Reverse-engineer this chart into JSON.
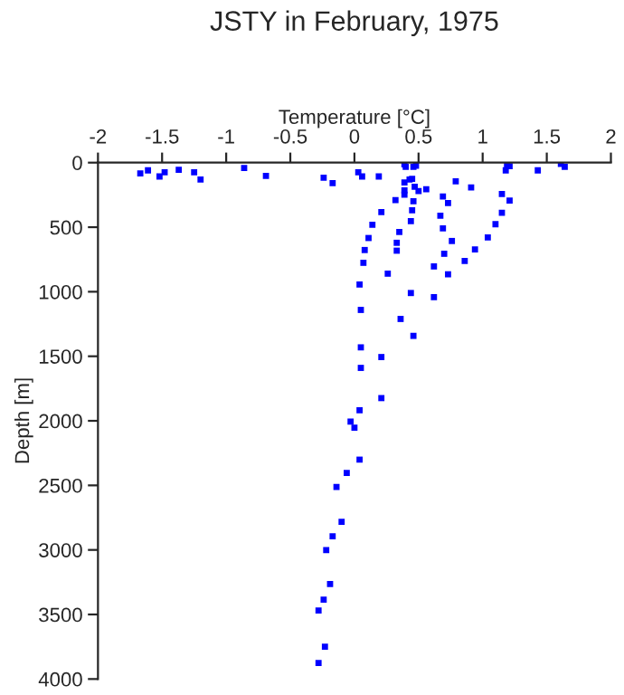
{
  "chart_data": {
    "type": "scatter",
    "title": "JSTY in February, 1975",
    "xlabel": "Temperature [°C]",
    "ylabel": "Depth [m]",
    "x": [
      -1.67,
      -1.61,
      -1.52,
      -1.48,
      -1.37,
      -1.25,
      -1.2,
      -0.86,
      -0.69,
      -0.24,
      -0.17,
      0.03,
      0.06,
      0.19,
      0.39,
      0.4,
      0.46,
      0.48,
      0.43,
      0.45,
      0.39,
      0.47,
      0.56,
      0.5,
      0.39,
      0.39,
      0.32,
      0.46,
      0.21,
      0.45,
      0.44,
      0.14,
      0.35,
      0.11,
      0.33,
      0.08,
      0.33,
      0.07,
      0.26,
      0.04,
      0.05,
      0.36,
      0.44,
      0.62,
      0.69,
      0.73,
      0.67,
      0.69,
      0.76,
      0.7,
      0.62,
      0.73,
      0.79,
      0.91,
      1.18,
      1.19,
      1.21,
      1.15,
      1.21,
      1.15,
      1.1,
      1.04,
      0.94,
      0.86,
      1.43,
      1.61,
      1.64,
      0.46,
      0.05,
      0.21,
      0.05,
      0.21,
      0.04,
      -0.03,
      0.0,
      0.04,
      -0.06,
      -0.14,
      -0.1,
      -0.17,
      -0.22,
      -0.19,
      -0.24,
      -0.28,
      -0.23,
      -0.28
    ],
    "values": [
      84,
      60,
      107,
      75,
      56,
      75,
      131,
      42,
      103,
      117,
      159,
      75,
      107,
      107,
      14,
      33,
      33,
      23,
      131,
      126,
      154,
      187,
      206,
      220,
      215,
      248,
      290,
      299,
      383,
      369,
      453,
      481,
      537,
      584,
      621,
      677,
      682,
      776,
      860,
      944,
      1141,
      1211,
      1010,
      1042,
      262,
      313,
      411,
      509,
      607,
      706,
      804,
      865,
      145,
      192,
      60,
      19,
      28,
      243,
      294,
      388,
      477,
      579,
      673,
      762,
      60,
      10,
      33,
      1342,
      1431,
      1506,
      1590,
      1824,
      1918,
      2006,
      2053,
      2301,
      2404,
      2512,
      2782,
      2894,
      3002,
      3264,
      3385,
      3469,
      3750,
      3876
    ],
    "color": "#0000ff",
    "marker": "square",
    "xlim": [
      -2,
      2
    ],
    "xticks": [
      -2,
      -1.5,
      -1,
      -0.5,
      0,
      0.5,
      1,
      1.5,
      2
    ],
    "ylim": [
      4000,
      0
    ],
    "yticks": [
      0,
      500,
      1000,
      1500,
      2000,
      2500,
      3000,
      3500,
      4000
    ],
    "grid": false
  }
}
